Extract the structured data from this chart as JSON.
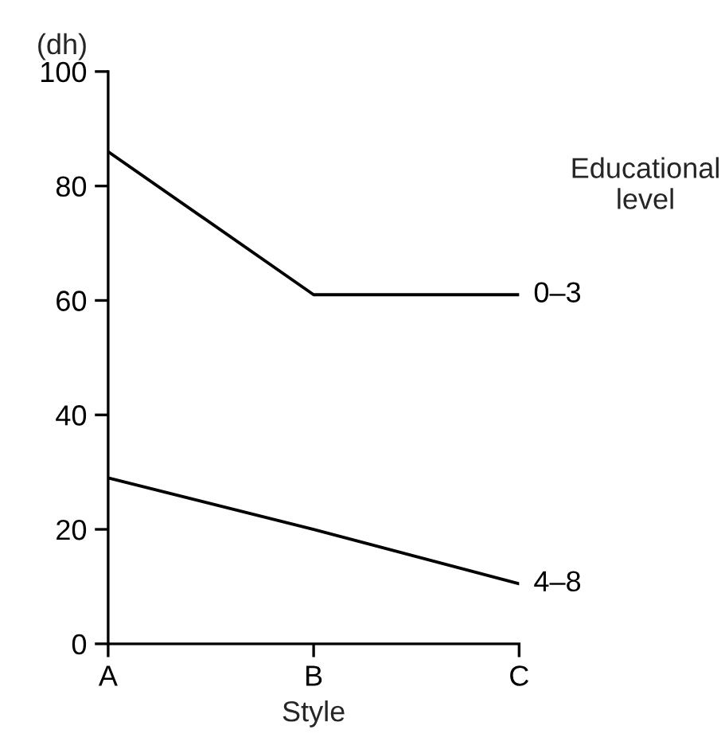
{
  "chart_data": {
    "type": "line",
    "xlabel": "Style",
    "ylabel": "(dh)",
    "categories": [
      "A",
      "B",
      "C"
    ],
    "series": [
      {
        "name": "0–3",
        "color": "#000000",
        "values": [
          86,
          61,
          61
        ]
      },
      {
        "name": "4–8",
        "color": "#000000",
        "values": [
          29,
          20,
          10.5
        ]
      }
    ],
    "ylim": [
      0,
      100
    ],
    "yticks": [
      0,
      20,
      40,
      60,
      80,
      100
    ],
    "annotations": [
      "Educational\nlevel"
    ],
    "grid": false,
    "legend": false,
    "marker": "none",
    "line_style": "solid"
  }
}
